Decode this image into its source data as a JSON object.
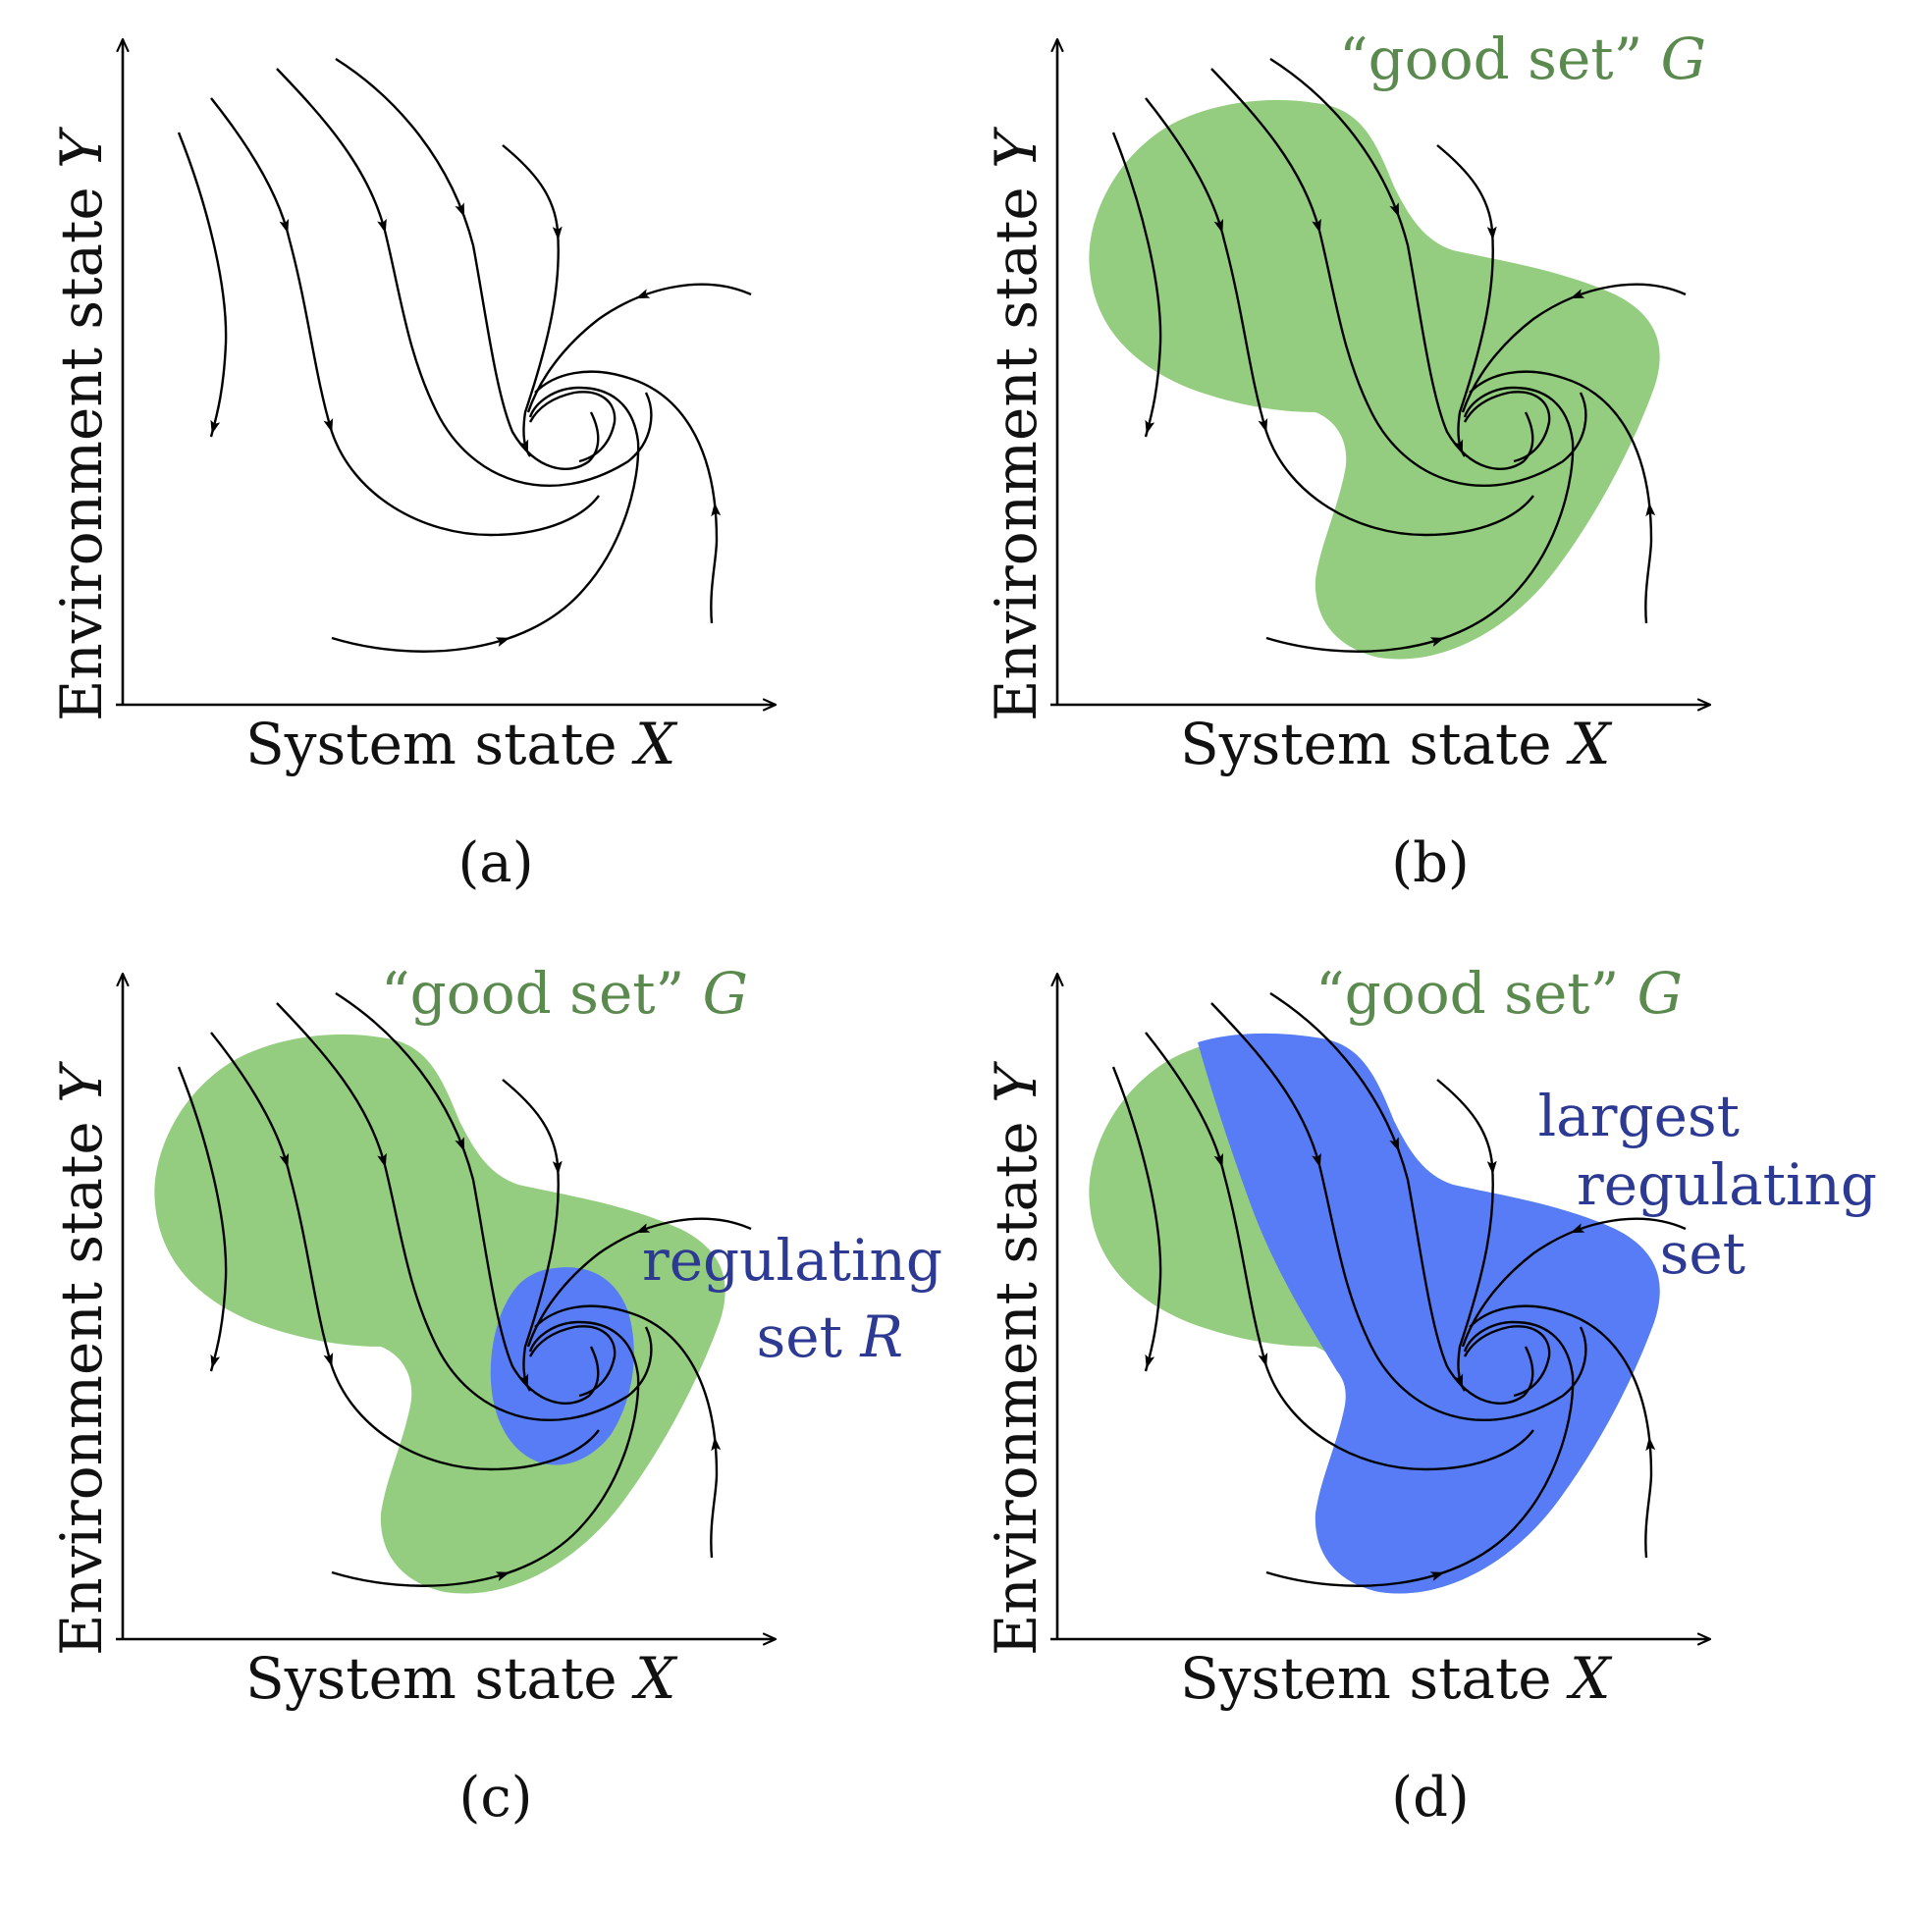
{
  "panels": [
    {
      "id": "a",
      "caption": "(a)",
      "x_axis_label": "System state ",
      "x_axis_var": "X",
      "y_axis_label": "Environment state ",
      "y_axis_var": "Y",
      "good_set_label": "",
      "good_set_var": "",
      "regulating_label_lines": [],
      "regulating_var": "",
      "show_good_set": false,
      "regulating_set": "none"
    },
    {
      "id": "b",
      "caption": "(b)",
      "x_axis_label": "System state ",
      "x_axis_var": "X",
      "y_axis_label": "Environment state ",
      "y_axis_var": "Y",
      "good_set_label": "“good set” ",
      "good_set_var": "G",
      "regulating_label_lines": [],
      "regulating_var": "",
      "show_good_set": true,
      "regulating_set": "none"
    },
    {
      "id": "c",
      "caption": "(c)",
      "x_axis_label": "System state ",
      "x_axis_var": "X",
      "y_axis_label": "Environment state ",
      "y_axis_var": "Y",
      "good_set_label": "“good set” ",
      "good_set_var": "G",
      "regulating_label_lines": [
        "regulating",
        "set "
      ],
      "regulating_var": "R",
      "show_good_set": true,
      "regulating_set": "small"
    },
    {
      "id": "d",
      "caption": "(d)",
      "x_axis_label": "System state ",
      "x_axis_var": "X",
      "y_axis_label": "Environment state ",
      "y_axis_var": "Y",
      "good_set_label": "“good set” ",
      "good_set_var": "G",
      "regulating_label_lines": [
        "largest",
        "regulating",
        "set"
      ],
      "regulating_var": "",
      "show_good_set": true,
      "regulating_set": "largest"
    }
  ],
  "colors": {
    "good_set_fill": "#94cd80",
    "regulating_fill": "#587cf5",
    "good_set_text": "#5b8a4e",
    "regulating_text": "#2d3a93",
    "curve": "#000000"
  }
}
